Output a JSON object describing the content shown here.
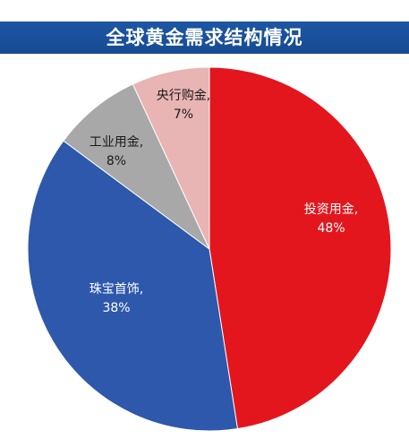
{
  "title": "全球黄金需求结构情况",
  "chart_data": {
    "type": "pie",
    "start_angle_deg": 0,
    "direction": "clockwise",
    "slices": [
      {
        "name": "投资用金",
        "value": 48,
        "label_line1": "投资用金,",
        "label_line2": "48%",
        "color": "#e3161e",
        "text_color": "#ffffff"
      },
      {
        "name": "珠宝首饰",
        "value": 38,
        "label_line1": "珠宝首饰,",
        "label_line2": "38%",
        "color": "#2e58ab",
        "text_color": "#ffffff"
      },
      {
        "name": "工业用金",
        "value": 8,
        "label_line1": "工业用金,",
        "label_line2": "8%",
        "color": "#a8a8a8",
        "text_color": "#1a1a1a"
      },
      {
        "name": "央行购金",
        "value": 7,
        "label_line1": "央行购金,",
        "label_line2": "7%",
        "color": "#e8b4b4",
        "text_color": "#1a1a1a"
      }
    ]
  }
}
